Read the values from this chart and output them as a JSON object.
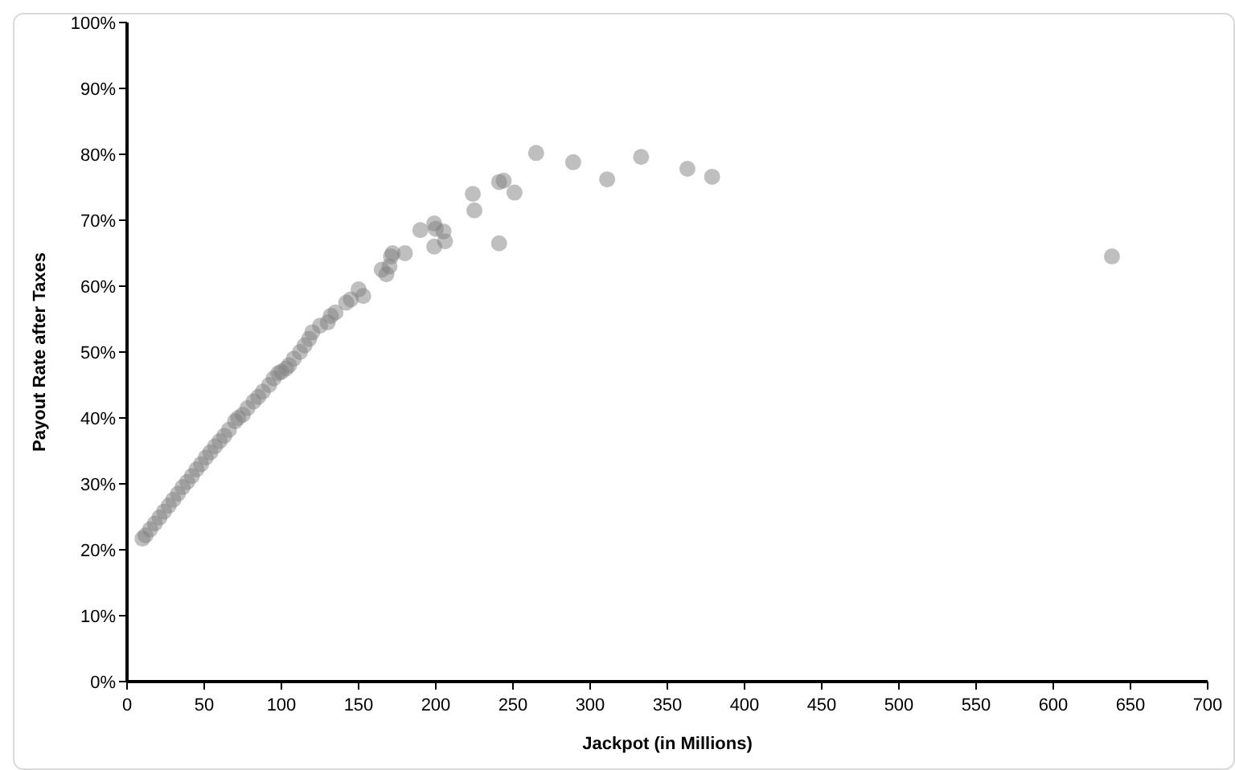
{
  "chart_data": {
    "type": "scatter",
    "xlabel": "Jackpot (in Millions)",
    "ylabel": "Payout Rate after Taxes",
    "marker": "circle",
    "grid": false,
    "xlim": [
      0,
      700
    ],
    "xticks": [
      0,
      50,
      100,
      150,
      200,
      250,
      300,
      350,
      400,
      450,
      500,
      550,
      600,
      650,
      700
    ],
    "ylim": [
      0,
      100
    ],
    "yticks": [
      {
        "value": 0,
        "label": "0%"
      },
      {
        "value": 10,
        "label": "10%"
      },
      {
        "value": 20,
        "label": "20%"
      },
      {
        "value": 30,
        "label": "30%"
      },
      {
        "value": 40,
        "label": "40%"
      },
      {
        "value": 50,
        "label": "50%"
      },
      {
        "value": 60,
        "label": "60%"
      },
      {
        "value": 70,
        "label": "70%"
      },
      {
        "value": 80,
        "label": "80%"
      },
      {
        "value": 90,
        "label": "90%"
      },
      {
        "value": 100,
        "label": "100%"
      }
    ],
    "series": [
      {
        "color": "#808080",
        "x": [
          10,
          12,
          15,
          18,
          21,
          24,
          27,
          30,
          33,
          36,
          39,
          42,
          45,
          48,
          51,
          54,
          57,
          60,
          63,
          66,
          70,
          72,
          75,
          78,
          82,
          85,
          88,
          92,
          95,
          98,
          100,
          103,
          105,
          108,
          112,
          115,
          118,
          120,
          125,
          130,
          132,
          135,
          142,
          145,
          150,
          153,
          165,
          168,
          170,
          171,
          172,
          180,
          190,
          199,
          200,
          199,
          206,
          205,
          224,
          225,
          241,
          241,
          244,
          251,
          265,
          289,
          311,
          333,
          363,
          379,
          638
        ],
        "values": [
          21.7,
          22.2,
          23.1,
          24,
          24.9,
          25.8,
          26.7,
          27.6,
          28.5,
          29.5,
          30.3,
          31.2,
          32.2,
          33,
          34,
          34.8,
          35.7,
          36.5,
          37.3,
          38.2,
          39.5,
          40,
          40.5,
          41.5,
          42.5,
          43.2,
          44,
          45,
          46,
          46.8,
          47,
          47.5,
          48,
          49,
          50,
          51,
          52,
          53,
          54,
          54.5,
          55.5,
          56,
          57.5,
          58,
          59.5,
          58.5,
          62.5,
          61.8,
          63,
          64.5,
          65,
          65,
          68.5,
          69.5,
          68.7,
          66,
          66.8,
          68.3,
          74,
          71.5,
          66.5,
          75.8,
          76,
          74.2,
          80.2,
          78.8,
          76.2,
          79.6,
          77.8,
          76.6,
          64.5
        ]
      }
    ]
  }
}
